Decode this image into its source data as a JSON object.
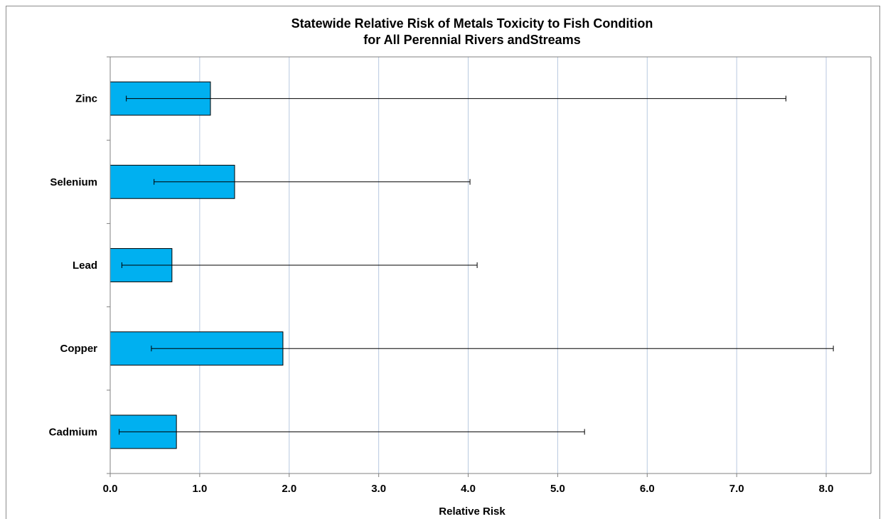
{
  "chart_data": {
    "type": "bar",
    "orientation": "horizontal",
    "title_lines": [
      "Statewide Relative Risk of Metals Toxicity to Fish Condition",
      "for All Perennial Rivers andStreams"
    ],
    "xlabel": "Relative Risk",
    "ylabel": "",
    "categories": [
      "Cadmium",
      "Copper",
      "Lead",
      "Selenium",
      "Zinc"
    ],
    "values": [
      0.74,
      1.93,
      0.69,
      1.39,
      1.12
    ],
    "error_low": [
      0.1,
      0.46,
      0.13,
      0.49,
      0.18
    ],
    "error_high": [
      5.3,
      8.08,
      4.1,
      4.02,
      7.55
    ],
    "xlim": [
      0,
      8.5
    ],
    "xticks": [
      "0.0",
      "1.0",
      "2.0",
      "3.0",
      "4.0",
      "5.0",
      "6.0",
      "7.0",
      "8.0"
    ],
    "grid": "vertical",
    "legend": "none"
  },
  "colors": {
    "bar_fill": "#00b0f0",
    "bar_stroke": "#000000",
    "gridline": "#b8c8e0",
    "axis": "#808080",
    "errorbar": "#000000"
  }
}
